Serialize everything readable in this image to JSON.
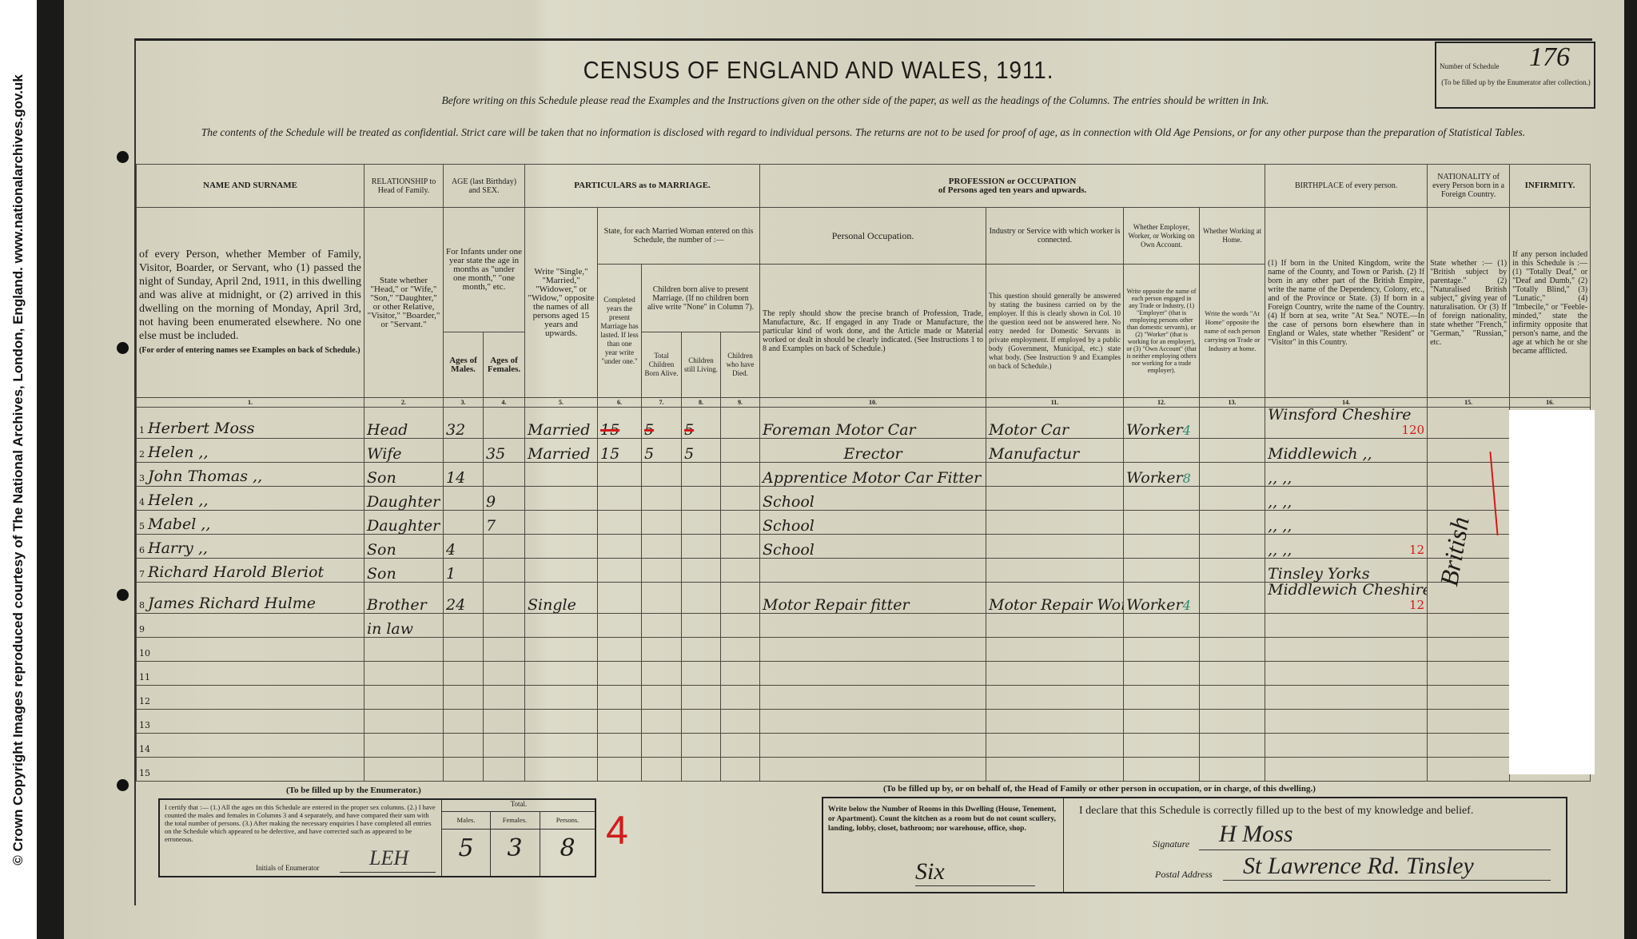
{
  "copyright": "© Crown Copyright Images reproduced courtesy of The National Archives, London, England. www.nationalarchives.gov.uk",
  "title": "CENSUS OF ENGLAND AND WALES, 1911.",
  "instructions_line": "Before writing on this Schedule please read the Examples and the Instructions given on the other side of the paper, as well as the headings of the Columns. The entries should be written in Ink.",
  "confidential_line": "The contents of the Schedule will be treated as confidential. Strict care will be taken that no information is disclosed with regard to individual persons. The returns are not to be used for proof of age, as in connection with Old Age Pensions, or for any other purpose than the preparation of Statistical Tables.",
  "schedule": {
    "label": "Number of Schedule",
    "value": "176",
    "note": "(To be filled up by the Enumerator after collection.)"
  },
  "headers": {
    "name": "NAME AND SURNAME",
    "name_instr": "of every Person, whether Member of Family, Visitor, Boarder, or Servant, who (1) passed the night of Sunday, April 2nd, 1911, in this dwelling and was alive at midnight, or (2) arrived in this dwelling on the morning of Monday, April 3rd, not having been enumerated elsewhere. No one else must be included.",
    "name_note": "(For order of entering names see Examples on back of Schedule.)",
    "relationship": "RELATIONSHIP to Head of Family.",
    "relationship_instr": "State whether \"Head,\" or \"Wife,\" \"Son,\" \"Daughter,\" or other Relative, \"Visitor,\" \"Boarder,\" or \"Servant.\"",
    "age": "AGE (last Birthday) and SEX.",
    "age_instr": "For Infants under one year state the age in months as \"under one month,\" \"one month,\" etc.",
    "age_males": "Ages of Males.",
    "age_females": "Ages of Females.",
    "marriage": "PARTICULARS as to MARRIAGE.",
    "marriage_instr": "Write \"Single,\" \"Married,\" \"Widower,\" or \"Widow,\" opposite the names of all persons aged 15 years and upwards.",
    "married_woman": "State, for each Married Woman entered on this Schedule, the number of :—",
    "years_married": "Completed years the present Marriage has lasted. If less than one year write \"under one.\"",
    "children_born": "Children born alive to present Marriage. (If no children born alive write \"None\" in Column 7).",
    "total_born": "Total Children Born Alive.",
    "still_living": "Children still Living.",
    "have_died": "Children who have Died.",
    "profession": "PROFESSION or OCCUPATION",
    "profession_sub": "of Persons aged ten years and upwards.",
    "personal_occ": "Personal Occupation.",
    "personal_occ_instr": "The reply should show the precise branch of Profession, Trade, Manufacture, &c. If engaged in any Trade or Manufacture, the particular kind of work done, and the Article made or Material worked or dealt in should be clearly indicated. (See Instructions 1 to 8 and Examples on back of Schedule.)",
    "industry": "Industry or Service with which worker is connected.",
    "industry_instr": "This question should generally be answered by stating the business carried on by the employer. If this is clearly shown in Col. 10 the question need not be answered here. No entry needed for Domestic Servants in private employment. If employed by a public body (Government, Municipal, etc.) state what body. (See Instruction 9 and Examples on back of Schedule.)",
    "employer": "Whether Employer, Worker, or Working on Own Account.",
    "employer_instr": "Write opposite the name of each person engaged in any Trade or Industry, (1) \"Employer\" (that is employing persons other than domestic servants), or (2) \"Worker\" (that is working for an employer), or (3) \"Own Account\" (that is neither employing others nor working for a trade employer).",
    "at_home": "Whether Working at Home.",
    "at_home_instr": "Write the words \"At Home\" opposite the name of each person carrying on Trade or Industry at home.",
    "birthplace": "BIRTHPLACE of every person.",
    "birthplace_instr": "(1) If born in the United Kingdom, write the name of the County, and Town or Parish. (2) If born in any other part of the British Empire, write the name of the Dependency, Colony, etc., and of the Province or State. (3) If born in a Foreign Country, write the name of the Country. (4) If born at sea, write \"At Sea.\" NOTE.—In the case of persons born elsewhere than in England or Wales, state whether \"Resident\" or \"Visitor\" in this Country.",
    "nationality": "NATIONALITY of every Person born in a Foreign Country.",
    "nationality_instr": "State whether :— (1) \"British subject by parentage.\" (2) \"Naturalised British subject,\" giving year of naturalisation. Or (3) If of foreign nationality, state whether \"French,\" \"German,\" \"Russian,\" etc.",
    "infirmity": "INFIRMITY.",
    "infirmity_instr": "If any person included in this Schedule is :— (1) \"Totally Deaf,\" or \"Deaf and Dumb,\" (2) \"Totally Blind,\" (3) \"Lunatic,\" (4) \"Imbecile,\" or \"Feeble-minded,\" state the infirmity opposite that person's name, and the age at which he or she became afflicted.",
    "col_numbers": [
      "1.",
      "2.",
      "3.",
      "4.",
      "5.",
      "6.",
      "7.",
      "8.",
      "9.",
      "10.",
      "11.",
      "12.",
      "13.",
      "14.",
      "15.",
      "16."
    ]
  },
  "rows": [
    {
      "n": "1",
      "name": "Herbert Moss",
      "rel": "Head",
      "m": "32",
      "f": "",
      "marital": "Married",
      "years": "15",
      "years_struck": true,
      "born": "5",
      "born_struck": true,
      "living": "5",
      "living_struck": true,
      "died": "",
      "occ": "Foreman Motor Car",
      "ind": "Motor Car",
      "emp": "Worker",
      "emp_code": "4",
      "home": "",
      "birth": "Winsford Cheshire",
      "birth_code": "120"
    },
    {
      "n": "2",
      "name": "Helen ,,",
      "rel": "Wife",
      "m": "",
      "f": "35",
      "marital": "Married",
      "years": "15",
      "born": "5",
      "living": "5",
      "died": "",
      "occ": "Erector",
      "ind": "Manufactur",
      "emp": "",
      "home": "",
      "birth": "Middlewich ,,"
    },
    {
      "n": "3",
      "name": "John Thomas ,,",
      "rel": "Son",
      "m": "14",
      "f": "",
      "marital": "",
      "years": "",
      "born": "",
      "living": "",
      "died": "",
      "occ": "Apprentice Motor Car Fitter",
      "ind": "",
      "emp": "Worker",
      "emp_code": "8",
      "home": "",
      "birth": ",,  ,,"
    },
    {
      "n": "4",
      "name": "Helen ,,",
      "rel": "Daughter",
      "m": "",
      "f": "9",
      "marital": "",
      "years": "",
      "born": "",
      "living": "",
      "died": "",
      "occ": "School",
      "ind": "",
      "emp": "",
      "home": "",
      "birth": ",,  ,,"
    },
    {
      "n": "5",
      "name": "Mabel ,,",
      "rel": "Daughter",
      "m": "",
      "f": "7",
      "marital": "",
      "years": "",
      "born": "",
      "living": "",
      "died": "",
      "occ": "School",
      "ind": "",
      "emp": "",
      "home": "",
      "birth": ",,  ,,"
    },
    {
      "n": "6",
      "name": "Harry ,,",
      "rel": "Son",
      "m": "4",
      "f": "",
      "marital": "",
      "years": "",
      "born": "",
      "living": "",
      "died": "",
      "occ": "School",
      "ind": "",
      "emp": "",
      "home": "",
      "birth": ",,  ,,",
      "birth_code": "12"
    },
    {
      "n": "7",
      "name": "Richard Harold Bleriot",
      "rel": "Son",
      "m": "1",
      "f": "",
      "marital": "",
      "years": "",
      "born": "",
      "living": "",
      "died": "",
      "occ": "",
      "ind": "",
      "emp": "",
      "home": "",
      "birth": "Tinsley Yorks"
    },
    {
      "n": "8",
      "name": "James Richard Hulme",
      "rel": "Brother",
      "m": "24",
      "f": "",
      "marital": "Single",
      "years": "",
      "born": "",
      "living": "",
      "died": "",
      "occ": "Motor Repair fitter",
      "ind": "Motor Repair Works",
      "emp": "Worker",
      "emp_code": "4",
      "home": "",
      "birth": "Middlewich Cheshire",
      "birth_code": "12"
    },
    {
      "n": "9",
      "name": "",
      "rel": "in law"
    },
    {
      "n": "10"
    },
    {
      "n": "11"
    },
    {
      "n": "12"
    },
    {
      "n": "13"
    },
    {
      "n": "14"
    },
    {
      "n": "15"
    }
  ],
  "nationality_entry": "British",
  "enumerator": {
    "caption": "(To be filled up by the Enumerator.)",
    "certify": "I certify that :— (1.) All the ages on this Schedule are entered in the proper sex columns. (2.) I have counted the males and females in Columns 3 and 4 separately, and have compared their sum with the total number of persons. (3.) After making the necessary enquiries I have completed all entries on the Schedule which appeared to be defective, and have corrected such as appeared to be erroneous.",
    "initials_label": "Initials of Enumerator",
    "initials": "LEH",
    "total_label": "Total.",
    "males_label": "Males.",
    "females_label": "Females.",
    "persons_label": "Persons.",
    "males": "5",
    "females": "3",
    "persons": "8",
    "red_mark": "4"
  },
  "head": {
    "caption": "(To be filled up by, or on behalf of, the Head of Family or other person in occupation, or in charge, of this dwelling.)",
    "rooms_instr": "Write below the Number of Rooms in this Dwelling (House, Tenement, or Apartment). Count the kitchen as a room but do not count scullery, landing, lobby, closet, bathroom; nor warehouse, office, shop.",
    "rooms": "Six",
    "declaration": "I declare that this Schedule is correctly filled up to the best of my knowledge and belief.",
    "signature_label": "Signature",
    "signature": "H Moss",
    "address_label": "Postal Address",
    "address": "St Lawrence Rd. Tinsley"
  },
  "colors": {
    "paper": "#d6d4c1",
    "ink": "#1d1c18",
    "red_ink": "#d21a1a",
    "green_ink": "#2f8a74"
  }
}
